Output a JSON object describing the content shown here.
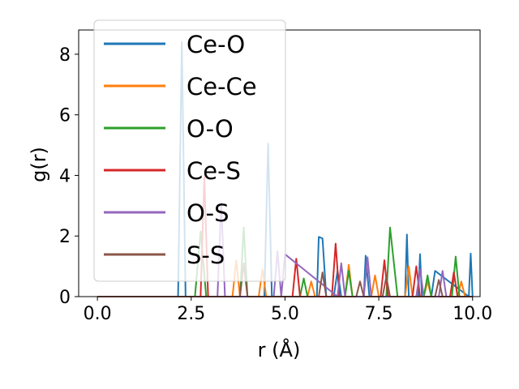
{
  "chart_data": {
    "type": "line",
    "xlabel": "r (Å)",
    "ylabel": "g(r)",
    "xlim": [
      -0.5,
      10.2
    ],
    "ylim": [
      0,
      8.8
    ],
    "xticks": [
      0.0,
      2.5,
      5.0,
      7.5,
      10.0
    ],
    "xtick_labels": [
      "0.0",
      "2.5",
      "5.0",
      "7.5",
      "10.0"
    ],
    "yticks": [
      0,
      2,
      4,
      6,
      8
    ],
    "ytick_labels": [
      "0",
      "2",
      "4",
      "6",
      "8"
    ],
    "legend_placement": "upper-left",
    "grid": false,
    "series": [
      {
        "name": "Ce-O",
        "color": "#1f77b4",
        "x": [
          0.0,
          2.15,
          2.25,
          2.35,
          2.45,
          4.45,
          4.55,
          4.65,
          5.85,
          5.9,
          6.0,
          6.1,
          6.3,
          6.4,
          6.5,
          6.6,
          7.1,
          7.15,
          7.25,
          8.2,
          8.25,
          8.3,
          8.55,
          8.6,
          8.65,
          8.9,
          9.0,
          9.9,
          9.95,
          10.0
        ],
        "y": [
          0.0,
          0.0,
          8.4,
          0.0,
          0.0,
          0.0,
          5.05,
          0.0,
          0.0,
          1.97,
          1.92,
          0.0,
          0.0,
          0.85,
          0.0,
          0.0,
          0.0,
          1.35,
          0.0,
          0.0,
          2.05,
          0.0,
          0.0,
          1.4,
          0.0,
          0.0,
          0.85,
          0.0,
          1.42,
          0.0
        ]
      },
      {
        "name": "Ce-Ce",
        "color": "#ff7f0e",
        "x": [
          0.0,
          3.6,
          3.7,
          3.8,
          4.3,
          4.4,
          4.5,
          5.6,
          5.7,
          5.8,
          6.6,
          6.7,
          6.8,
          7.3,
          7.4,
          7.5,
          8.2,
          8.3,
          8.4,
          8.7,
          8.8,
          8.9,
          9.6,
          9.7,
          9.8,
          10.0
        ],
        "y": [
          0.0,
          0.0,
          1.2,
          0.0,
          0.0,
          0.9,
          0.0,
          0.0,
          0.5,
          0.0,
          0.0,
          1.05,
          0.0,
          0.0,
          0.7,
          0.0,
          0.0,
          1.0,
          0.0,
          0.0,
          0.5,
          0.0,
          0.0,
          0.5,
          0.0,
          0.0
        ]
      },
      {
        "name": "O-O",
        "color": "#2ca02c",
        "x": [
          0.0,
          2.6,
          2.75,
          2.9,
          3.8,
          3.9,
          4.0,
          5.4,
          5.5,
          5.6,
          6.6,
          6.7,
          6.8,
          7.6,
          7.7,
          7.8,
          8.0,
          8.7,
          8.8,
          8.9,
          9.45,
          9.55,
          9.65,
          10.0
        ],
        "y": [
          0.0,
          0.0,
          2.15,
          0.0,
          0.0,
          2.28,
          0.0,
          0.0,
          0.6,
          0.0,
          0.0,
          0.85,
          0.0,
          0.0,
          0.0,
          2.28,
          0.0,
          0.0,
          0.7,
          0.0,
          0.0,
          1.32,
          0.0,
          0.0
        ]
      },
      {
        "name": "Ce-S",
        "color": "#d62728",
        "x": [
          0.0,
          2.75,
          2.85,
          2.95,
          5.2,
          5.3,
          5.4,
          6.25,
          6.35,
          6.45,
          7.55,
          7.65,
          7.75,
          8.4,
          8.5,
          8.6,
          9.4,
          9.5,
          9.6,
          10.0
        ],
        "y": [
          0.0,
          0.0,
          3.95,
          0.0,
          0.0,
          1.25,
          0.0,
          0.0,
          1.75,
          0.0,
          0.0,
          1.2,
          0.0,
          0.0,
          1.0,
          0.0,
          0.0,
          0.8,
          0.0,
          0.0
        ]
      },
      {
        "name": "O-S",
        "color": "#9467bd",
        "x": [
          0.0,
          3.2,
          3.3,
          3.4,
          4.7,
          4.8,
          4.9,
          5.0,
          6.4,
          6.5,
          6.6,
          7.1,
          7.2,
          7.3,
          8.5,
          8.6,
          8.7,
          9.1,
          9.2,
          9.3,
          10.0
        ],
        "y": [
          0.0,
          0.0,
          3.1,
          0.0,
          0.0,
          1.5,
          0.0,
          1.4,
          0.0,
          1.1,
          0.0,
          0.0,
          1.3,
          0.0,
          0.0,
          0.9,
          0.0,
          0.0,
          0.85,
          0.0,
          0.0
        ]
      },
      {
        "name": "S-S",
        "color": "#8c564b",
        "x": [
          0.0,
          3.8,
          3.9,
          4.0,
          5.9,
          6.0,
          6.1,
          6.9,
          7.0,
          7.1,
          7.6,
          7.7,
          7.8,
          9.0,
          9.1,
          9.2,
          10.0
        ],
        "y": [
          0.0,
          0.0,
          1.1,
          0.0,
          0.0,
          0.8,
          0.0,
          0.0,
          0.5,
          0.0,
          0.0,
          0.65,
          0.0,
          0.0,
          0.55,
          0.0,
          0.0
        ]
      }
    ]
  }
}
